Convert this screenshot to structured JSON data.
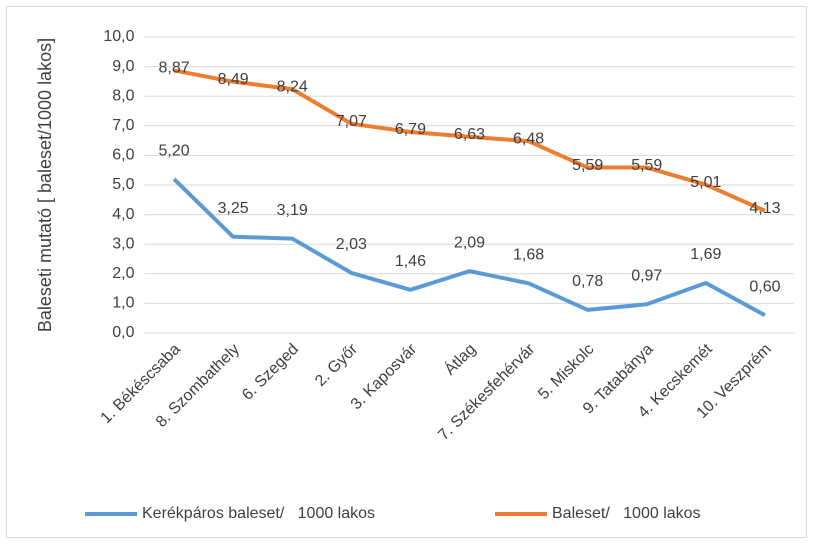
{
  "chart_data": {
    "type": "line",
    "y_label": "Baleseti mutató [ baleset/1000 lakos]",
    "categories": [
      "1. Békéscsaba",
      "8. Szombathely",
      "6. Szeged",
      "2. Győr",
      "3. Kaposvár",
      "Átlag",
      "7. Székesfehérvár",
      "5. Miskolc",
      "9. Tatabánya",
      "4. Kecskemét",
      "10. Veszprém"
    ],
    "series": [
      {
        "name": "Kerékpáros baleset/   1000 lakos",
        "color": "#5b9bd5",
        "values": [
          5.2,
          3.25,
          3.19,
          2.03,
          1.46,
          2.09,
          1.68,
          0.78,
          0.97,
          1.69,
          0.6
        ],
        "value_labels": [
          "5,20",
          "3,25",
          "3,19",
          "2,03",
          "1,46",
          "2,09",
          "1,68",
          "0,78",
          "0,97",
          "1,69",
          "0,60"
        ]
      },
      {
        "name": "Baleset/   1000 lakos",
        "color": "#ed7d31",
        "values": [
          8.87,
          8.49,
          8.24,
          7.07,
          6.79,
          6.63,
          6.48,
          5.59,
          5.59,
          5.01,
          4.13
        ],
        "value_labels": [
          "8,87",
          "8,49",
          "8,24",
          "7,07",
          "6,79",
          "6,63",
          "6,48",
          "5,59",
          "5,59",
          "5,01",
          "4,13"
        ]
      }
    ],
    "ylim": [
      0,
      10
    ],
    "yticks": [
      {
        "value": 0,
        "label": "0,0"
      },
      {
        "value": 1,
        "label": "1,0"
      },
      {
        "value": 2,
        "label": "2,0"
      },
      {
        "value": 3,
        "label": "3,0"
      },
      {
        "value": 4,
        "label": "4,0"
      },
      {
        "value": 5,
        "label": "5,0"
      },
      {
        "value": 6,
        "label": "6,0"
      },
      {
        "value": 7,
        "label": "7,0"
      },
      {
        "value": 8,
        "label": "8,0"
      },
      {
        "value": 9,
        "label": "9,0"
      },
      {
        "value": 10,
        "label": "10,0"
      }
    ],
    "grid": true,
    "legend": "bottom"
  }
}
